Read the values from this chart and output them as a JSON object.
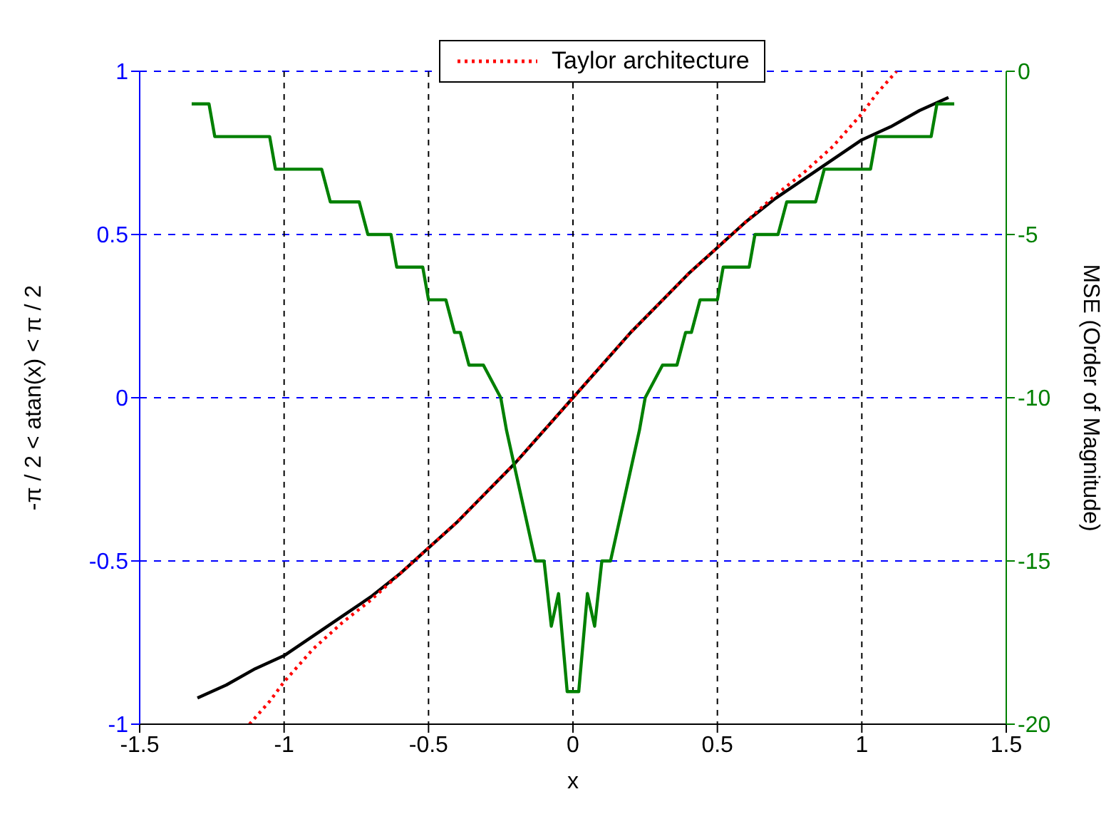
{
  "chart_data": {
    "type": "line",
    "xlabel": "x",
    "ylabel": "-π / 2 < atan(x) < π / 2",
    "y2label": "MSE (Order of Magnitude)",
    "xlim": [
      -1.5,
      1.5
    ],
    "xticks": [
      -1.5,
      -1,
      -0.5,
      0,
      0.5,
      1,
      1.5
    ],
    "ylim": [
      -1,
      1
    ],
    "yticks": [
      -1,
      -0.5,
      0,
      0.5,
      1
    ],
    "y2lim": [
      -20,
      0
    ],
    "y2ticks": [
      -20,
      -15,
      -10,
      -5,
      0
    ],
    "grid": true,
    "legend": "top",
    "series": [
      {
        "color": "#000000",
        "line_style": "solid",
        "x": [
          -1.3,
          -1.2,
          -1.1,
          -1,
          -0.9,
          -0.8,
          -0.7,
          -0.6,
          -0.5,
          -0.4,
          -0.3,
          -0.2,
          -0.1,
          0,
          0.1,
          0.2,
          0.3,
          0.4,
          0.5,
          0.6,
          0.7,
          0.8,
          0.9,
          1,
          1.1,
          1.2,
          1.3
        ],
        "values": [
          -0.92,
          -0.88,
          -0.83,
          -0.79,
          -0.73,
          -0.67,
          -0.61,
          -0.54,
          -0.46,
          -0.38,
          -0.29,
          -0.2,
          -0.1,
          0,
          0.1,
          0.2,
          0.29,
          0.38,
          0.46,
          0.54,
          0.61,
          0.67,
          0.73,
          0.79,
          0.83,
          0.88,
          0.92
        ]
      },
      {
        "name": "Taylor architecture",
        "color": "#ff0000",
        "line_style": "dotted",
        "x": [
          -1.12,
          -1.05,
          -1,
          -0.9,
          -0.8,
          -0.7,
          -0.6,
          -0.5,
          -0.4,
          -0.3,
          -0.2,
          -0.1,
          0,
          0.1,
          0.2,
          0.3,
          0.4,
          0.5,
          0.6,
          0.7,
          0.8,
          0.9,
          1,
          1.05,
          1.12
        ],
        "values": [
          -1,
          -0.93,
          -0.87,
          -0.77,
          -0.69,
          -0.62,
          -0.54,
          -0.46,
          -0.38,
          -0.29,
          -0.2,
          -0.1,
          0,
          0.1,
          0.2,
          0.29,
          0.38,
          0.46,
          0.54,
          0.62,
          0.69,
          0.77,
          0.87,
          0.93,
          1
        ]
      },
      {
        "color": "#008000",
        "axis": "y2",
        "line_style": "solid",
        "x": [
          -1.32,
          -1.26,
          -1.24,
          -1.05,
          -1.03,
          -0.87,
          -0.84,
          -0.74,
          -0.71,
          -0.63,
          -0.61,
          -0.52,
          -0.5,
          -0.44,
          -0.41,
          -0.39,
          -0.36,
          -0.31,
          -0.25,
          -0.23,
          -0.13,
          -0.1,
          -0.075,
          -0.05,
          -0.02,
          0.02,
          0.05,
          0.075,
          0.1,
          0.13,
          0.23,
          0.25,
          0.31,
          0.36,
          0.39,
          0.41,
          0.44,
          0.5,
          0.52,
          0.61,
          0.63,
          0.71,
          0.74,
          0.84,
          0.87,
          1.03,
          1.05,
          1.24,
          1.26,
          1.32
        ],
        "values": [
          -1,
          -1,
          -2,
          -2,
          -3,
          -3,
          -4,
          -4,
          -5,
          -5,
          -6,
          -6,
          -7,
          -7,
          -8,
          -8,
          -9,
          -9,
          -10,
          -11,
          -15,
          -15,
          -17,
          -16,
          -19,
          -19,
          -16,
          -17,
          -15,
          -15,
          -11,
          -10,
          -9,
          -9,
          -8,
          -8,
          -7,
          -7,
          -6,
          -6,
          -5,
          -5,
          -4,
          -4,
          -3,
          -3,
          -2,
          -2,
          -1,
          -1
        ]
      }
    ]
  }
}
